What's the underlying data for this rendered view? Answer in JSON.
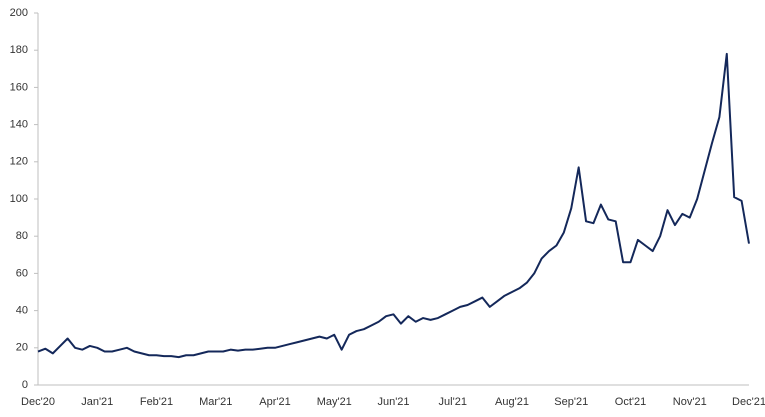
{
  "chart_data": {
    "type": "line",
    "categories": [
      "Dec'20",
      null,
      null,
      null,
      null,
      null,
      null,
      null,
      "Jan'21",
      null,
      null,
      null,
      null,
      null,
      null,
      null,
      "Feb'21",
      null,
      null,
      null,
      null,
      null,
      null,
      null,
      "Mar'21",
      null,
      null,
      null,
      null,
      null,
      null,
      null,
      "Apr'21",
      null,
      null,
      null,
      null,
      null,
      null,
      null,
      "May'21",
      null,
      null,
      null,
      null,
      null,
      null,
      null,
      "Jun'21",
      null,
      null,
      null,
      null,
      null,
      null,
      null,
      "Jul'21",
      null,
      null,
      null,
      null,
      null,
      null,
      null,
      "Aug'21",
      null,
      null,
      null,
      null,
      null,
      null,
      null,
      "Sep'21",
      null,
      null,
      null,
      null,
      null,
      null,
      null,
      "Oct'21",
      null,
      null,
      null,
      null,
      null,
      null,
      null,
      "Nov'21",
      null,
      null,
      null,
      null,
      null,
      null,
      null,
      "Dec'21"
    ],
    "values": [
      18,
      19.5,
      17,
      21,
      25,
      20,
      19,
      21,
      20,
      18,
      18,
      19,
      20,
      18,
      17,
      16,
      16,
      15.5,
      15.5,
      15,
      16,
      16,
      17,
      18,
      18,
      18,
      19,
      18.5,
      19,
      19,
      19.5,
      20,
      20,
      21,
      22,
      23,
      24,
      25,
      26,
      25,
      27,
      19,
      27,
      29,
      30,
      32,
      34,
      37,
      38,
      33,
      37,
      34,
      36,
      35,
      36,
      38,
      40,
      42,
      43,
      45,
      47,
      42,
      45,
      48,
      50,
      52,
      55,
      60,
      68,
      72,
      75,
      82,
      95,
      117,
      88,
      87,
      97,
      89,
      88,
      66,
      66,
      78,
      75,
      72,
      80,
      94,
      86,
      92,
      90,
      100,
      115,
      130,
      144,
      178,
      101,
      99,
      76
    ],
    "color": "#14285a",
    "ylim": [
      0,
      200
    ],
    "yticks": [
      0,
      20,
      40,
      60,
      80,
      100,
      120,
      140,
      160,
      180,
      200
    ],
    "grid": false
  }
}
